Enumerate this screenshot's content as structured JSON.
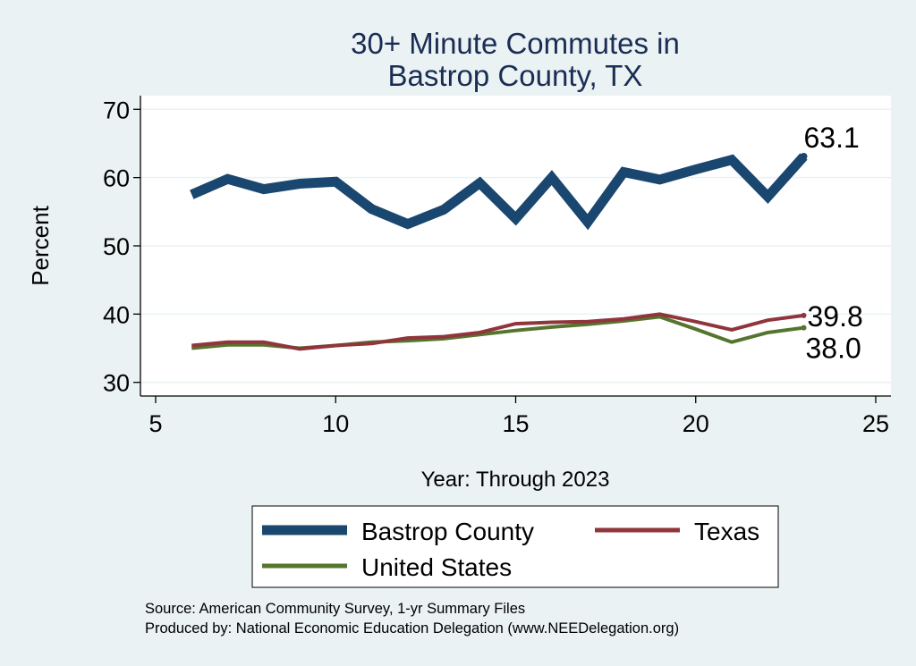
{
  "chart_data": {
    "type": "line",
    "title_lines": [
      "30+ Minute Commutes in",
      "Bastrop County, TX"
    ],
    "xlabel": "Year: Through 2023",
    "ylabel": "Percent",
    "xlim": [
      5,
      25
    ],
    "ylim": [
      28,
      72
    ],
    "xticks": [
      5,
      10,
      15,
      20,
      25
    ],
    "yticks": [
      30,
      40,
      50,
      60,
      70
    ],
    "grid": true,
    "legend_position": "bottom",
    "series": [
      {
        "name": "Bastrop County",
        "color": "#1a476f",
        "x": [
          6,
          7,
          8,
          9,
          10,
          11,
          12,
          13,
          14,
          15,
          16,
          17,
          18,
          19,
          20,
          21,
          22,
          23
        ],
        "y": [
          57.5,
          59.8,
          58.3,
          59.1,
          59.4,
          55.4,
          53.2,
          55.3,
          59.2,
          54.0,
          60.0,
          53.5,
          60.8,
          59.7,
          61.2,
          62.6,
          57.2,
          63.1
        ],
        "end_label": "63.1"
      },
      {
        "name": "Texas",
        "color": "#90353b",
        "x": [
          6,
          7,
          8,
          9,
          10,
          11,
          12,
          13,
          14,
          15,
          16,
          17,
          18,
          19,
          20,
          21,
          22,
          23
        ],
        "y": [
          35.4,
          35.9,
          35.9,
          34.9,
          35.4,
          35.7,
          36.5,
          36.7,
          37.3,
          38.6,
          38.8,
          38.9,
          39.3,
          40.0,
          38.9,
          37.7,
          39.1,
          39.8
        ],
        "end_label": "39.8"
      },
      {
        "name": "United States",
        "color": "#55752f",
        "x": [
          6,
          7,
          8,
          9,
          10,
          11,
          12,
          13,
          14,
          15,
          16,
          17,
          18,
          19,
          20,
          21,
          22,
          23
        ],
        "y": [
          35.0,
          35.5,
          35.5,
          35.0,
          35.4,
          35.9,
          36.1,
          36.4,
          37.0,
          37.6,
          38.1,
          38.5,
          39.0,
          39.6,
          37.8,
          35.9,
          37.3,
          38.0
        ],
        "end_label": "38.0"
      }
    ]
  },
  "notes": {
    "source": "Source: American Community Survey, 1-yr Summary Files",
    "producer": "Produced by: National Economic Education Delegation (www.NEEDelegation.org)"
  }
}
